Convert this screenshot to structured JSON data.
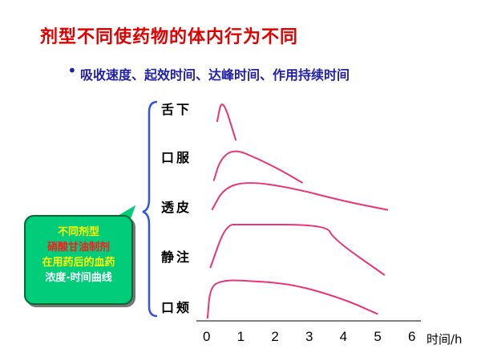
{
  "slide": {
    "title": "剂型不同使药物的体内行为不同",
    "bullet": "吸收速度、起效时间、达峰时间、作用持续时间",
    "bullet_marker": "•"
  },
  "routes": [
    "舌下",
    "口服",
    "透皮",
    "静注",
    "口颊"
  ],
  "callout": {
    "line1": "不同剂型",
    "line2": "硝酸甘油制剂",
    "line3": "在用药后的血药",
    "line4": "浓度-时间曲线"
  },
  "chart_data": {
    "type": "line",
    "xlabel": "时间/h",
    "x_ticks": [
      "0",
      "1",
      "2",
      "3",
      "4",
      "5",
      "6"
    ],
    "xlim": [
      0,
      6
    ],
    "series": [
      {
        "x": [
          0.3,
          0.45,
          0.85
        ],
        "y": [
          0.45,
          1.0,
          0.05
        ]
      },
      {
        "x": [
          0.2,
          0.4,
          0.8,
          1.5,
          2.2,
          2.8
        ],
        "y": [
          0.05,
          0.6,
          0.85,
          0.6,
          0.3,
          0.0
        ]
      },
      {
        "x": [
          0.15,
          0.5,
          1.2,
          2.5,
          4.0,
          5.3
        ],
        "y": [
          0.15,
          0.65,
          0.8,
          0.65,
          0.35,
          0.15
        ]
      },
      {
        "x": [
          0.1,
          0.55,
          1.0,
          3.5,
          3.7,
          5.2
        ],
        "y": [
          0.2,
          0.8,
          0.8,
          0.8,
          0.6,
          0.1
        ]
      },
      {
        "x": [
          0.02,
          0.1,
          0.5,
          1.0,
          2.5,
          4.0,
          5.0
        ],
        "y": [
          0.0,
          0.75,
          0.88,
          0.88,
          0.8,
          0.45,
          0.1
        ]
      }
    ],
    "color": "#e8347a"
  }
}
